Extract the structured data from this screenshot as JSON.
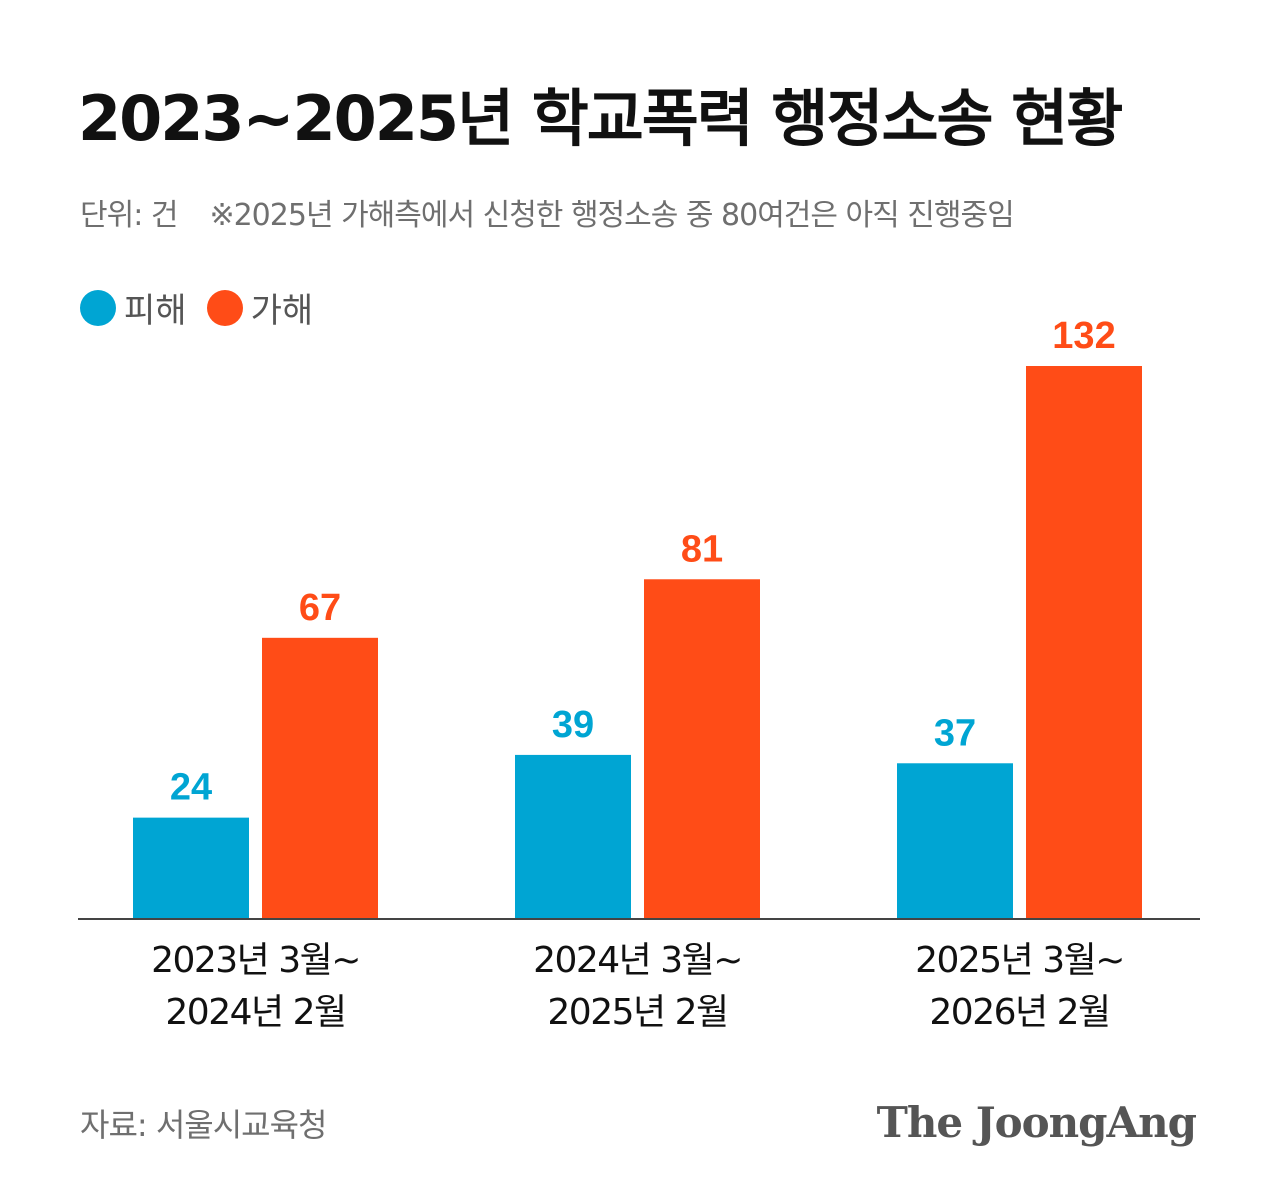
{
  "title": "2023~2025년 학교폭력 행정소송 현황",
  "subtitle": {
    "unit": "단위: 건",
    "note": "※2025년 가해측에서 신청한 행정소송 중 80여건은 아직 진행중임"
  },
  "source": "자료: 서울시교육청",
  "brand": "The JoongAng",
  "colors": {
    "victim": "#00a5d3",
    "perpetrator": "#ff4c17",
    "axis": "#444444",
    "category_text": "#111111"
  },
  "chart_data": {
    "type": "bar",
    "title": "2023~2025년 학교폭력 행정소송 현황",
    "xlabel": "",
    "ylabel": "",
    "ylim": [
      0,
      132
    ],
    "grid": false,
    "legend": "top-left",
    "categories": [
      [
        "2023년 3월~",
        "2024년 2월"
      ],
      [
        "2024년 3월~",
        "2025년 2월"
      ],
      [
        "2025년 3월~",
        "2026년 2월"
      ]
    ],
    "series": [
      {
        "name": "피해",
        "color": "#00a5d3",
        "values": [
          24,
          39,
          37
        ]
      },
      {
        "name": "가해",
        "color": "#ff4c17",
        "values": [
          67,
          81,
          132
        ]
      }
    ]
  }
}
